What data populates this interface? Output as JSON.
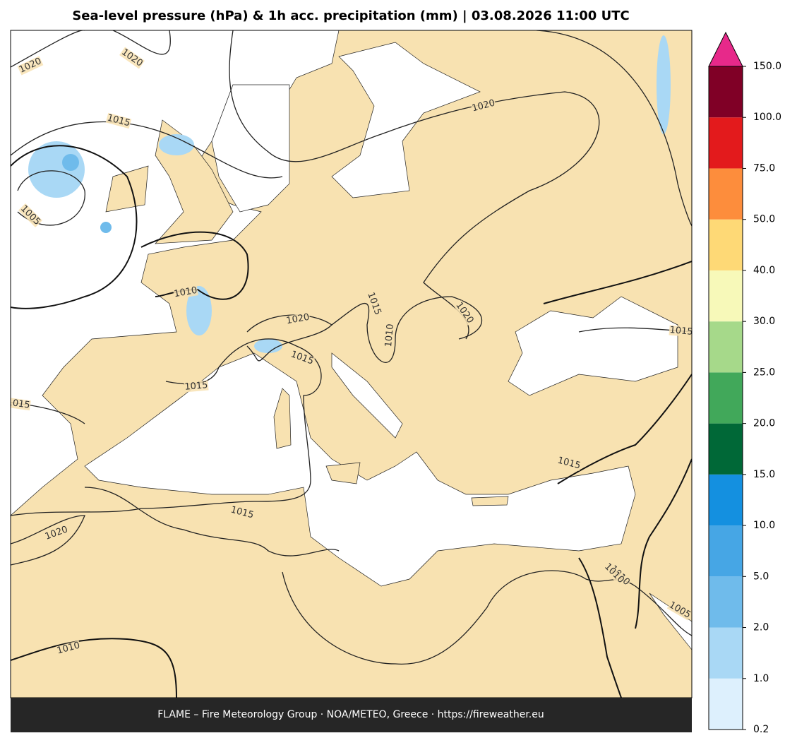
{
  "title": "Sea-level pressure (hPa) & 1h acc. precipitation (mm)  |  03.08.2026 11:00 UTC",
  "footer": "FLAME – Fire Meteorology Group · NOA/METEO, Greece · https://fireweather.eu",
  "colorbar": {
    "ticks": [
      0.2,
      {
        "value": 1,
        "label": "1.0"
      },
      {
        "value": 2,
        "label": "2.0"
      },
      {
        "value": 5,
        "label": "5.0"
      },
      {
        "value": 10,
        "label": "10.0"
      },
      {
        "value": 15,
        "label": "15.0"
      },
      {
        "value": 20,
        "label": "20.0"
      },
      {
        "value": 25,
        "label": "25.0"
      },
      {
        "value": 30,
        "label": "30.0"
      },
      {
        "value": 40,
        "label": "40.0"
      },
      {
        "value": 50,
        "label": "50.0"
      },
      {
        "value": 75,
        "label": "75.0"
      },
      {
        "value": 100,
        "label": "100.0"
      },
      {
        "value": 150,
        "label": "150.0"
      }
    ],
    "colors": [
      "#ddf0fd",
      "#a9d8f5",
      "#6fbbeb",
      "#46a6e5",
      "#1490e0",
      "#006837",
      "#41a85a",
      "#a6d98a",
      "#f7f9b9",
      "#fed976",
      "#fd8d3c",
      "#e31a1c",
      "#800026"
    ],
    "extend_color": "#e7298a"
  },
  "contour_labels": [
    "1020",
    "1020",
    "1015",
    "1005",
    "1020",
    "1010",
    "1020",
    "1015",
    "1015",
    "1015",
    "1015",
    "1020",
    "1015",
    "1010",
    "1020",
    "1015",
    "1010",
    "1010",
    "1005",
    "1015",
    "1010"
  ]
}
